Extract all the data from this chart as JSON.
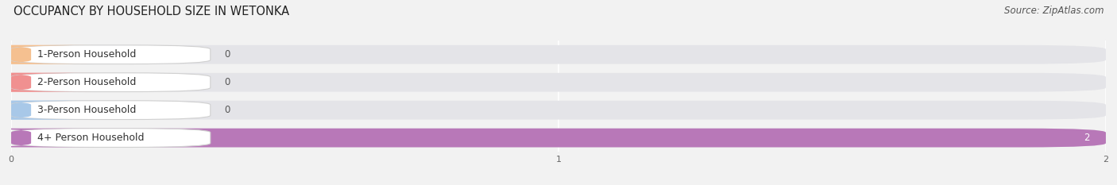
{
  "title": "OCCUPANCY BY HOUSEHOLD SIZE IN WETONKA",
  "source": "Source: ZipAtlas.com",
  "categories": [
    "1-Person Household",
    "2-Person Household",
    "3-Person Household",
    "4+ Person Household"
  ],
  "values": [
    0,
    0,
    0,
    2
  ],
  "bar_colors": [
    "#f5c090",
    "#f09090",
    "#a8c8e8",
    "#b878b8"
  ],
  "xlim": [
    0,
    2
  ],
  "xticks": [
    0,
    1,
    2
  ],
  "background_color": "#f2f2f2",
  "bar_bg_color": "#e4e4e8",
  "title_fontsize": 10.5,
  "source_fontsize": 8.5,
  "label_fontsize": 9,
  "value_fontsize": 8.5
}
